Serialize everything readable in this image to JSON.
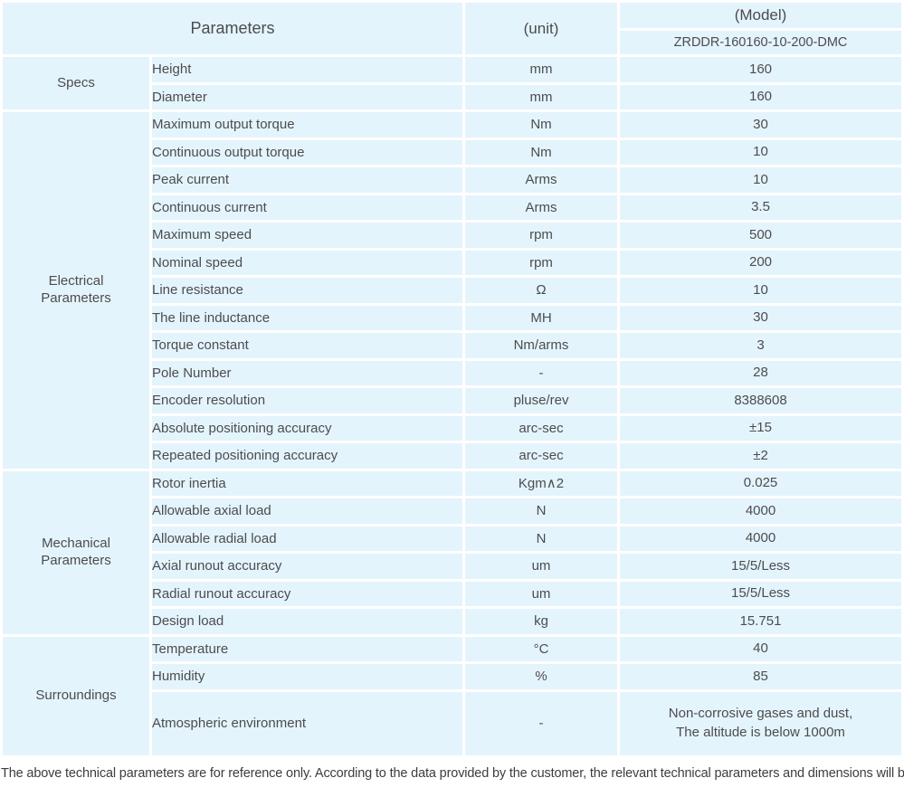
{
  "colors": {
    "header_bg": "#c9d3ec",
    "body_bg": "#e4f4fc",
    "gap": "#ffffff",
    "text_color": "#4c4c4f",
    "header_text": "#404046",
    "footer_text": "#3d3d40",
    "page_bg": "#ffffff"
  },
  "header": {
    "parameters_label": "Parameters",
    "unit_label": "(unit)",
    "model_label": "(Model)",
    "model_value": "ZRDDR-160160-10-200-DMC"
  },
  "sections": [
    {
      "name": "Specs",
      "rows": [
        {
          "param": "Height",
          "unit": "mm",
          "value": "160"
        },
        {
          "param": "Diameter",
          "unit": "mm",
          "value": "160"
        }
      ]
    },
    {
      "name": "Electrical\nParameters",
      "rows": [
        {
          "param": "Maximum output torque",
          "unit": "Nm",
          "value": "30"
        },
        {
          "param": "Continuous output torque",
          "unit": "Nm",
          "value": "10"
        },
        {
          "param": "Peak current",
          "unit": "Arms",
          "value": "10"
        },
        {
          "param": "Continuous current",
          "unit": "Arms",
          "value": "3.5"
        },
        {
          "param": "Maximum speed",
          "unit": "rpm",
          "value": "500"
        },
        {
          "param": "Nominal speed",
          "unit": "rpm",
          "value": "200"
        },
        {
          "param": "Line resistance",
          "unit": "Ω",
          "value": "10"
        },
        {
          "param": "The line inductance",
          "unit": "MH",
          "value": "30"
        },
        {
          "param": "Torque constant",
          "unit": "Nm/arms",
          "value": "3"
        },
        {
          "param": "Pole Number",
          "unit": "-",
          "value": "28"
        },
        {
          "param": "Encoder resolution",
          "unit": "pluse/rev",
          "value": "8388608"
        },
        {
          "param": "Absolute positioning accuracy",
          "unit": "arc-sec",
          "value": "±15"
        },
        {
          "param": "Repeated positioning accuracy",
          "unit": "arc-sec",
          "value": "±2"
        }
      ]
    },
    {
      "name": "Mechanical\nParameters",
      "rows": [
        {
          "param": "Rotor inertia",
          "unit": "Kgm∧2",
          "value": "0.025"
        },
        {
          "param": "Allowable axial load",
          "unit": "N",
          "value": "4000"
        },
        {
          "param": "Allowable radial load",
          "unit": "N",
          "value": "4000"
        },
        {
          "param": "Axial runout accuracy",
          "unit": "um",
          "value": "15/5/Less"
        },
        {
          "param": "Radial runout accuracy",
          "unit": "um",
          "value": "15/5/Less"
        },
        {
          "param": "Design load",
          "unit": "kg",
          "value": "15.751"
        }
      ]
    },
    {
      "name": "Surroundings",
      "rows": [
        {
          "param": "Temperature",
          "unit": "°C",
          "value": "40"
        },
        {
          "param": "Humidity",
          "unit": "%",
          "value": "85"
        },
        {
          "param": "Atmospheric environment",
          "unit": "-",
          "value": "Non-corrosive gases and dust,\nThe altitude is below 1000m",
          "tall": true
        }
      ]
    }
  ],
  "footer": {
    "note": "The above technical parameters are for reference only. According to the data provided by the customer, the relevant technical parameters and dimensions will be issued."
  }
}
